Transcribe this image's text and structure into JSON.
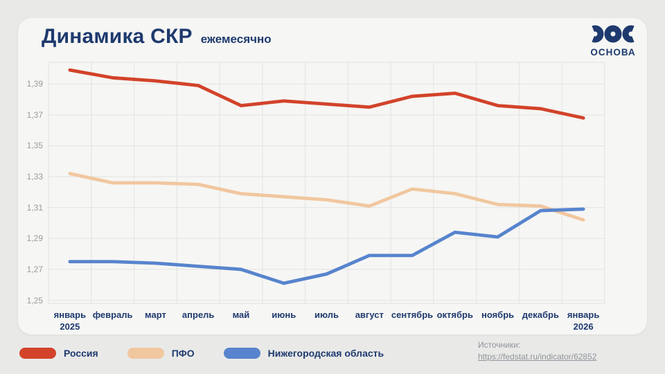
{
  "header": {
    "title": "Динамика СКР",
    "subtitle": "ежемесячно"
  },
  "logo": {
    "text": "ОСНОВА"
  },
  "chart_data": {
    "type": "line",
    "title": "Динамика СКР ежемесячно",
    "categories": [
      "январь",
      "февраль",
      "март",
      "апрель",
      "май",
      "июнь",
      "июль",
      "август",
      "сентябрь",
      "октябрь",
      "ноябрь",
      "декабрь",
      "январь"
    ],
    "category_years": [
      {
        "index": 0,
        "year": "2025"
      },
      {
        "index": 12,
        "year": "2026"
      }
    ],
    "y_ticks": [
      1.25,
      1.27,
      1.29,
      1.31,
      1.33,
      1.35,
      1.37,
      1.39
    ],
    "ylim": [
      1.248,
      1.404
    ],
    "grid": true,
    "legend_position": "bottom-left",
    "series": [
      {
        "name": "Россия",
        "color": "#d2432a",
        "values": [
          1.399,
          1.394,
          1.392,
          1.389,
          1.376,
          1.379,
          1.377,
          1.375,
          1.382,
          1.384,
          1.376,
          1.374,
          1.368
        ]
      },
      {
        "name": "ПФО",
        "color": "#f1c79f",
        "values": [
          1.332,
          1.326,
          1.326,
          1.325,
          1.319,
          1.317,
          1.315,
          1.311,
          1.322,
          1.319,
          1.312,
          1.311,
          1.302
        ]
      },
      {
        "name": "Нижегородская область",
        "color": "#5784cd",
        "values": [
          1.275,
          1.275,
          1.274,
          1.272,
          1.27,
          1.261,
          1.267,
          1.279,
          1.279,
          1.294,
          1.291,
          1.308,
          1.309
        ]
      }
    ]
  },
  "footer": {
    "sources_label": "Источники:",
    "source_link": "https://fedstat.ru/indicator/62852"
  },
  "colors": {
    "background": "#e9e9e8",
    "card": "#f6f6f4",
    "navy": "#1e3a6e",
    "grid": "#e2e2e0",
    "y_label": "#9b9b9b",
    "source_text": "#8f949a"
  }
}
